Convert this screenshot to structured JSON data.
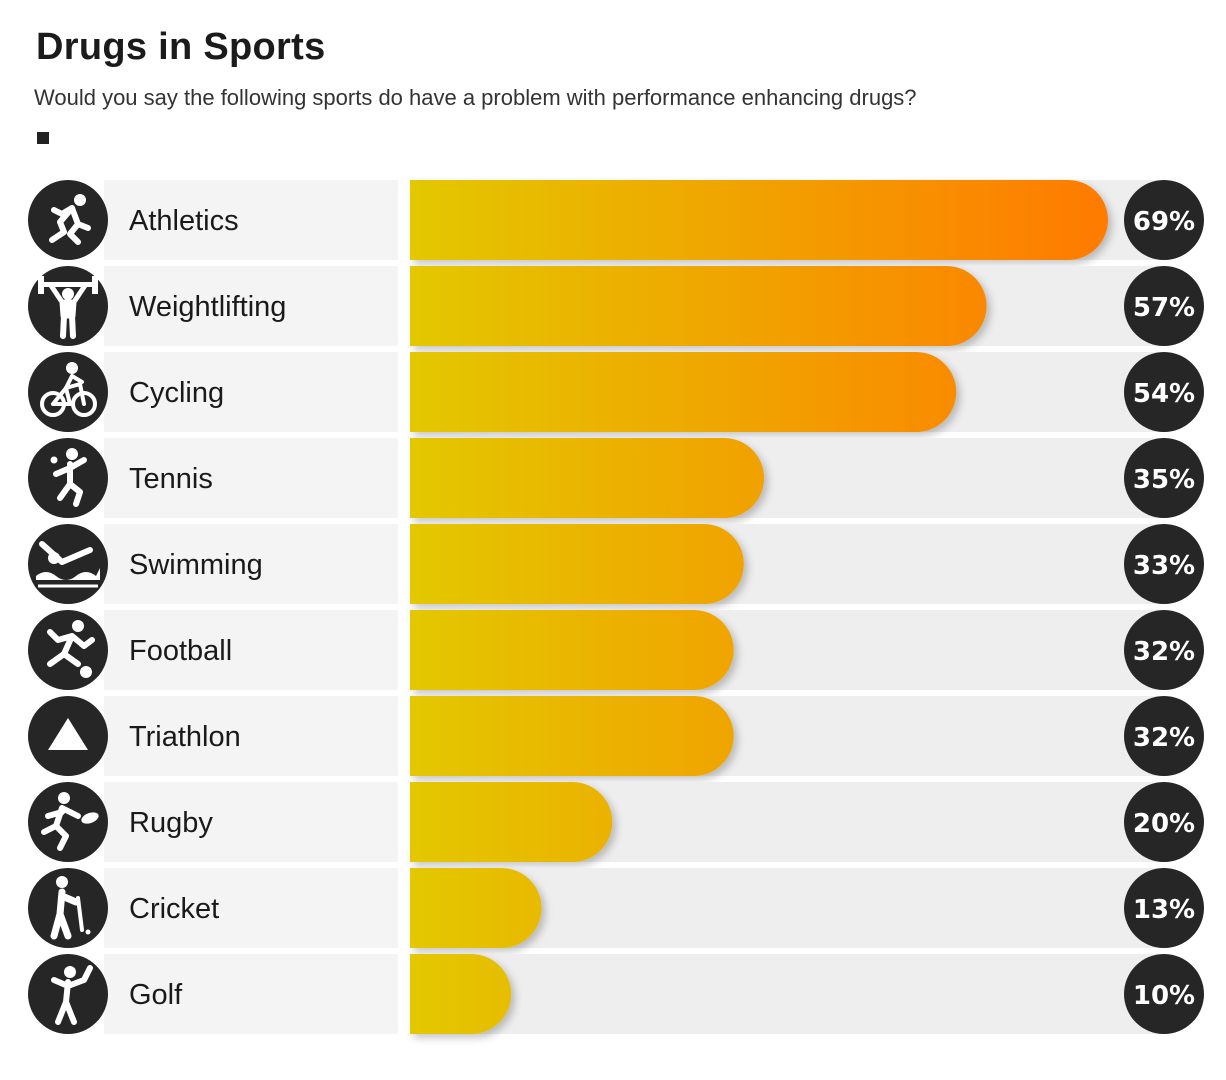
{
  "header": {
    "title": "Drugs in Sports",
    "subtitle": "Would you say the following sports do have a problem with performance enhancing drugs?"
  },
  "colors": {
    "bar_start": "#e3c800",
    "bar_end": "#ff7a00",
    "track": "#eeeeee",
    "label_bg": "#f4f4f4",
    "badge": "#262626"
  },
  "chart_data": {
    "type": "bar",
    "orientation": "horizontal",
    "title": "Drugs in Sports",
    "subtitle": "Would you say the following sports do have a problem with performance enhancing drugs?",
    "categories": [
      "Athletics",
      "Weightlifting",
      "Cycling",
      "Tennis",
      "Swimming",
      "Football",
      "Triathlon",
      "Rugby",
      "Cricket",
      "Golf"
    ],
    "values": [
      69,
      57,
      54,
      35,
      33,
      32,
      32,
      20,
      13,
      10
    ],
    "value_labels": [
      "69%",
      "57%",
      "54%",
      "35%",
      "33%",
      "32%",
      "32%",
      "20%",
      "13%",
      "10%"
    ],
    "icons": [
      "running-icon",
      "weightlifting-icon",
      "cycling-icon",
      "tennis-icon",
      "swimming-icon",
      "football-icon",
      "triathlon-triangle-icon",
      "rugby-icon",
      "cricket-icon",
      "golf-icon"
    ],
    "unit": "%",
    "xlim": [
      0,
      75
    ],
    "grid": false,
    "legend": "top-left"
  }
}
